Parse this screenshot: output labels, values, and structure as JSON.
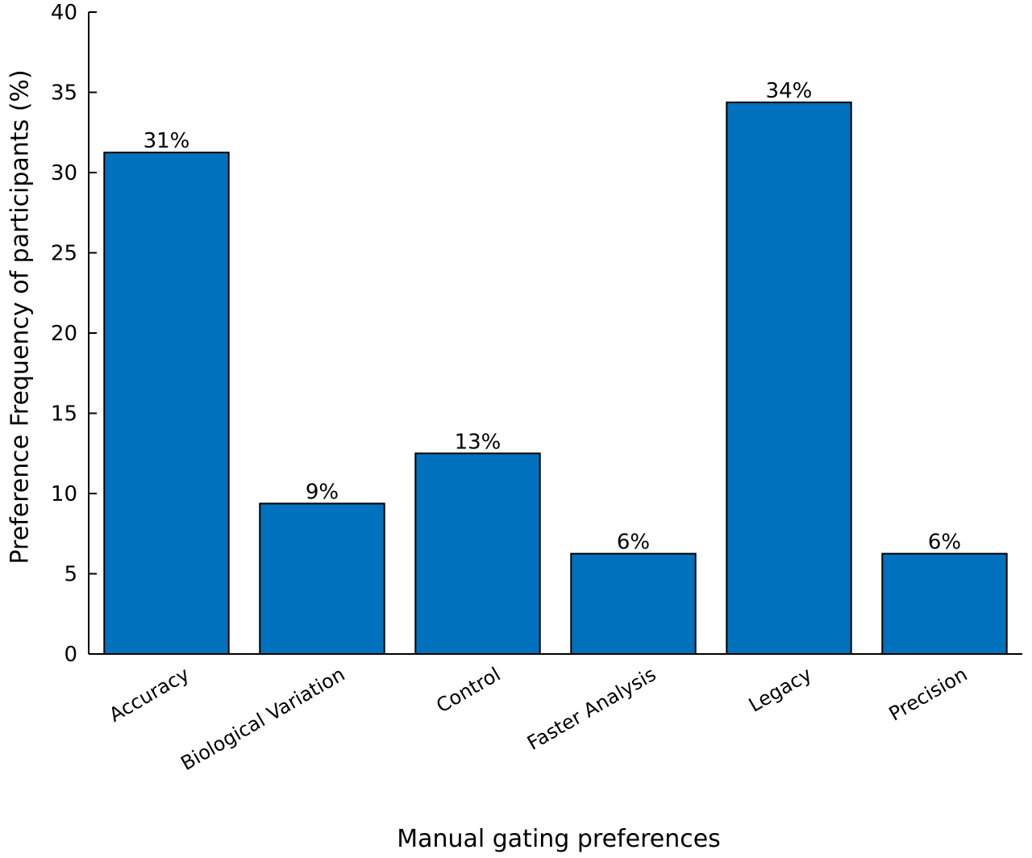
{
  "chart_data": {
    "type": "bar",
    "title": "",
    "xlabel": "Manual gating preferences",
    "ylabel": "Preference Frequency of participants (%)",
    "categories": [
      "Accuracy",
      "Biological Variation",
      "Control",
      "Faster Analysis",
      "Legacy",
      "Precision"
    ],
    "values": [
      31.25,
      9.375,
      12.5,
      6.25,
      34.375,
      6.25
    ],
    "data_labels": [
      "31%",
      "9%",
      "13%",
      "6%",
      "34%",
      "6%"
    ],
    "ylim": [
      0,
      40
    ],
    "yticks": [
      0,
      5,
      10,
      15,
      20,
      25,
      30,
      35,
      40
    ],
    "bar_color": "#0072BD",
    "grid": false,
    "legend": "none"
  }
}
